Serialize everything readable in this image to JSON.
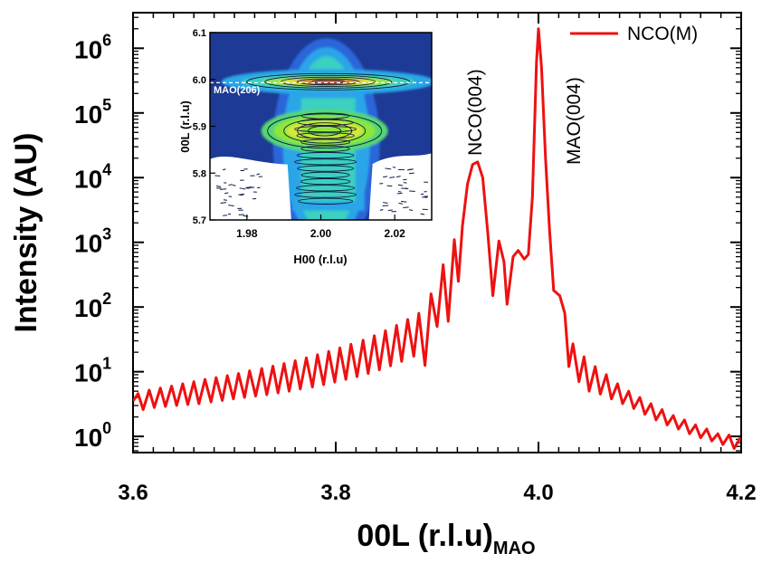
{
  "chart_data": [
    {
      "type": "line",
      "xlabel": "00L (r.l.u)",
      "xlabel_sub": "MAO",
      "ylabel": "Intensity (AU)",
      "xlim": [
        3.6,
        4.2
      ],
      "ylim_log10": [
        -0.25,
        6.55
      ],
      "yscale": "log",
      "x_ticks": [
        3.6,
        3.8,
        4.0,
        4.2
      ],
      "x_tick_labels": [
        "3.6",
        "3.8",
        "4.0",
        "4.2"
      ],
      "y_ticks_log10": [
        0,
        1,
        2,
        3,
        4,
        5,
        6
      ],
      "y_tick_labels": [
        {
          "base": "10",
          "exp": "0"
        },
        {
          "base": "10",
          "exp": "1"
        },
        {
          "base": "10",
          "exp": "2"
        },
        {
          "base": "10",
          "exp": "3"
        },
        {
          "base": "10",
          "exp": "4"
        },
        {
          "base": "10",
          "exp": "5"
        },
        {
          "base": "10",
          "exp": "6"
        }
      ],
      "grid": false,
      "legend_position": "top-right",
      "series": [
        {
          "name": "NCO(M)",
          "color": "#ee1111",
          "points": [
            [
              3.6,
              3.5
            ],
            [
              3.605,
              4.6
            ],
            [
              3.61,
              2.6
            ],
            [
              3.616,
              5.2
            ],
            [
              3.621,
              2.8
            ],
            [
              3.627,
              5.6
            ],
            [
              3.632,
              2.9
            ],
            [
              3.638,
              6.0
            ],
            [
              3.643,
              3.0
            ],
            [
              3.649,
              6.5
            ],
            [
              3.654,
              3.1
            ],
            [
              3.66,
              7.0
            ],
            [
              3.665,
              3.2
            ],
            [
              3.671,
              7.6
            ],
            [
              3.677,
              3.4
            ],
            [
              3.682,
              8.1
            ],
            [
              3.688,
              3.6
            ],
            [
              3.693,
              8.7
            ],
            [
              3.699,
              3.8
            ],
            [
              3.704,
              9.4
            ],
            [
              3.71,
              4.0
            ],
            [
              3.715,
              10.3
            ],
            [
              3.721,
              4.2
            ],
            [
              3.727,
              11.2
            ],
            [
              3.732,
              4.4
            ],
            [
              3.738,
              12.2
            ],
            [
              3.743,
              4.7
            ],
            [
              3.749,
              13.4
            ],
            [
              3.754,
              5.0
            ],
            [
              3.76,
              14.8
            ],
            [
              3.765,
              5.4
            ],
            [
              3.771,
              16.4
            ],
            [
              3.777,
              5.8
            ],
            [
              3.782,
              18.3
            ],
            [
              3.788,
              6.3
            ],
            [
              3.793,
              20.6
            ],
            [
              3.799,
              6.9
            ],
            [
              3.804,
              23.3
            ],
            [
              3.81,
              7.6
            ],
            [
              3.815,
              26.6
            ],
            [
              3.821,
              8.4
            ],
            [
              3.827,
              30.7
            ],
            [
              3.832,
              9.4
            ],
            [
              3.838,
              36.0
            ],
            [
              3.843,
              10.7
            ],
            [
              3.849,
              43.0
            ],
            [
              3.854,
              12.3
            ],
            [
              3.86,
              52.0
            ],
            [
              3.865,
              14.4
            ],
            [
              3.871,
              64.0
            ],
            [
              3.877,
              17.3
            ],
            [
              3.882,
              80.0
            ],
            [
              3.888,
              12.5
            ],
            [
              3.894,
              160.0
            ],
            [
              3.9,
              50.0
            ],
            [
              3.906,
              450.0
            ],
            [
              3.911,
              60.0
            ],
            [
              3.917,
              1100.0
            ],
            [
              3.921,
              250.0
            ],
            [
              3.925,
              1800.0
            ],
            [
              3.93,
              8000.0
            ],
            [
              3.935,
              16000.0
            ],
            [
              3.94,
              17500.0
            ],
            [
              3.945,
              10000.0
            ],
            [
              3.95,
              1400.0
            ],
            [
              3.955,
              150.0
            ],
            [
              3.961,
              1050.0
            ],
            [
              3.966,
              500.0
            ],
            [
              3.969,
              110.0
            ],
            [
              3.975,
              600.0
            ],
            [
              3.98,
              750.0
            ],
            [
              3.986,
              550.0
            ],
            [
              3.99,
              650.0
            ],
            [
              3.994,
              5000.0
            ],
            [
              3.998,
              600000.0
            ],
            [
              4.0,
              2000000.0
            ],
            [
              4.003,
              500000.0
            ],
            [
              4.007,
              20000.0
            ],
            [
              4.011,
              1500.0
            ],
            [
              4.015,
              180.0
            ],
            [
              4.021,
              150.0
            ],
            [
              4.026,
              80.0
            ],
            [
              4.03,
              12.0
            ],
            [
              4.034,
              27.0
            ],
            [
              4.04,
              7.0
            ],
            [
              4.045,
              17.0
            ],
            [
              4.05,
              5.0
            ],
            [
              4.056,
              12.0
            ],
            [
              4.061,
              4.5
            ],
            [
              4.067,
              9.0
            ],
            [
              4.072,
              3.8
            ],
            [
              4.078,
              6.5
            ],
            [
              4.083,
              3.2
            ],
            [
              4.089,
              5.0
            ],
            [
              4.094,
              2.7
            ],
            [
              4.1,
              4.0
            ],
            [
              4.105,
              2.2
            ],
            [
              4.111,
              3.2
            ],
            [
              4.116,
              1.8
            ],
            [
              4.122,
              2.6
            ],
            [
              4.127,
              1.5
            ],
            [
              4.133,
              2.1
            ],
            [
              4.138,
              1.3
            ],
            [
              4.144,
              1.8
            ],
            [
              4.149,
              1.1
            ],
            [
              4.155,
              1.5
            ],
            [
              4.16,
              0.95
            ],
            [
              4.166,
              1.3
            ],
            [
              4.171,
              0.85
            ],
            [
              4.177,
              1.1
            ],
            [
              4.182,
              0.75
            ],
            [
              4.188,
              1.05
            ],
            [
              4.193,
              0.65
            ],
            [
              4.199,
              0.95
            ]
          ]
        }
      ],
      "annotations": [
        "NCO(004)",
        "MAO(004)"
      ]
    },
    {
      "type": "heatmap",
      "xlabel": "H00 (r.l.u)",
      "ylabel": "00L (r.l.u)",
      "xlim": [
        1.97,
        2.03
      ],
      "ylim": [
        5.7,
        6.1
      ],
      "x_ticks": [
        1.98,
        2.0,
        2.02
      ],
      "x_tick_labels": [
        "1.98",
        "2.00",
        "2.02"
      ],
      "y_ticks": [
        5.7,
        5.8,
        5.9,
        6.0,
        6.1
      ],
      "y_tick_labels": [
        "5.7",
        "5.8",
        "5.9",
        "6.0",
        "6.1"
      ],
      "annotations": [
        "MAO(206)"
      ],
      "peaks": [
        {
          "h": 2.002,
          "l": 5.89,
          "level": "high"
        },
        {
          "h": 2.002,
          "l": 5.995,
          "level": "max"
        }
      ],
      "reference_line_l": 5.993,
      "colormap": [
        "#1c3a96",
        "#2b66d9",
        "#2aa6e8",
        "#3ad0c0",
        "#56d672",
        "#8fe63a",
        "#d6e83a",
        "#f0a23a",
        "#e23a2a",
        "#ffffff"
      ]
    }
  ],
  "legend": {
    "label": "NCO(M)"
  }
}
